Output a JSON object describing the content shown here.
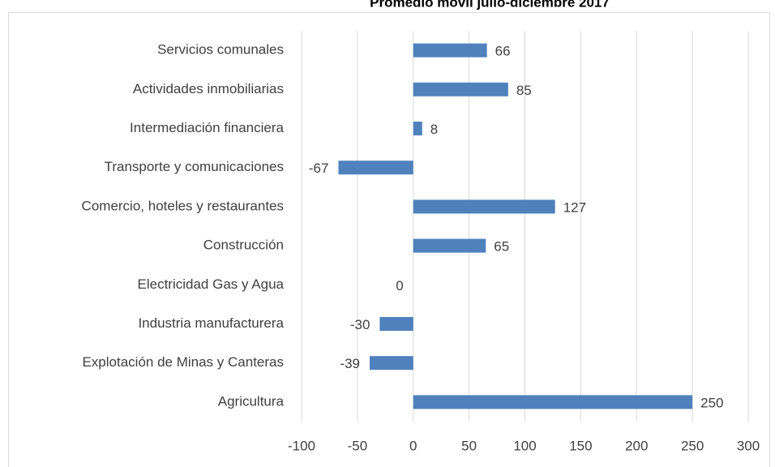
{
  "chart_data": {
    "type": "hbar",
    "title": "Promedio móvil julio-diciembre 2017",
    "categories": [
      "Servicios comunales",
      "Actividades inmobiliarias",
      "Intermediación financiera",
      "Transporte y comunicaciones",
      "Comercio, hoteles y restaurantes",
      "Construcción",
      "Electricidad Gas y Agua",
      "Industria manufacturera",
      "Explotación de Minas y Canteras",
      "Agricultura"
    ],
    "values": [
      66,
      85,
      8,
      -67,
      127,
      65,
      0,
      -30,
      -39,
      250
    ],
    "color": "#4f81bd",
    "xlim": [
      -100,
      300
    ],
    "xticks": [
      -100,
      -50,
      0,
      50,
      100,
      150,
      200,
      250,
      300
    ],
    "grid": true
  }
}
